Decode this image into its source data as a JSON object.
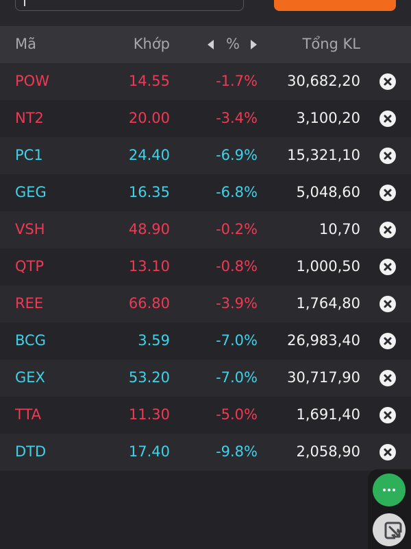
{
  "colors": {
    "background": "#232327",
    "header_bg": "#36363a",
    "row_odd": "#2b2b2f",
    "row_even": "#252529",
    "decrease_red": "#ee3a55",
    "floor_cyan": "#3fd2e8",
    "accent_orange": "#f26a1b",
    "fab_green": "#2eb05a"
  },
  "header": {
    "symbol": "Mã",
    "price": "Khớp",
    "change": "%",
    "volume": "Tổng KL",
    "change_prev_icon": "caret-left-icon",
    "change_next_icon": "caret-right-icon"
  },
  "rows": [
    {
      "symbol": "POW",
      "price": "14.55",
      "change": "-1.7%",
      "volume": "30,682,20",
      "color": "red"
    },
    {
      "symbol": "NT2",
      "price": "20.00",
      "change": "-3.4%",
      "volume": "3,100,20",
      "color": "red"
    },
    {
      "symbol": "PC1",
      "price": "24.40",
      "change": "-6.9%",
      "volume": "15,321,10",
      "color": "cyan"
    },
    {
      "symbol": "GEG",
      "price": "16.35",
      "change": "-6.8%",
      "volume": "5,048,60",
      "color": "cyan"
    },
    {
      "symbol": "VSH",
      "price": "48.90",
      "change": "-0.2%",
      "volume": "10,70",
      "color": "red"
    },
    {
      "symbol": "QTP",
      "price": "13.10",
      "change": "-0.8%",
      "volume": "1,000,50",
      "color": "red"
    },
    {
      "symbol": "REE",
      "price": "66.80",
      "change": "-3.9%",
      "volume": "1,764,80",
      "color": "red"
    },
    {
      "symbol": "BCG",
      "price": "3.59",
      "change": "-7.0%",
      "volume": "26,983,40",
      "color": "cyan"
    },
    {
      "symbol": "GEX",
      "price": "53.20",
      "change": "-7.0%",
      "volume": "30,717,90",
      "color": "cyan"
    },
    {
      "symbol": "TTA",
      "price": "11.30",
      "change": "-5.0%",
      "volume": "1,691,40",
      "color": "red"
    },
    {
      "symbol": "DTD",
      "price": "17.40",
      "change": "-9.8%",
      "volume": "2,058,90",
      "color": "cyan"
    }
  ],
  "icons": {
    "remove": "close-circle-icon",
    "more": "more-dots-icon",
    "expand": "expand-icon"
  }
}
